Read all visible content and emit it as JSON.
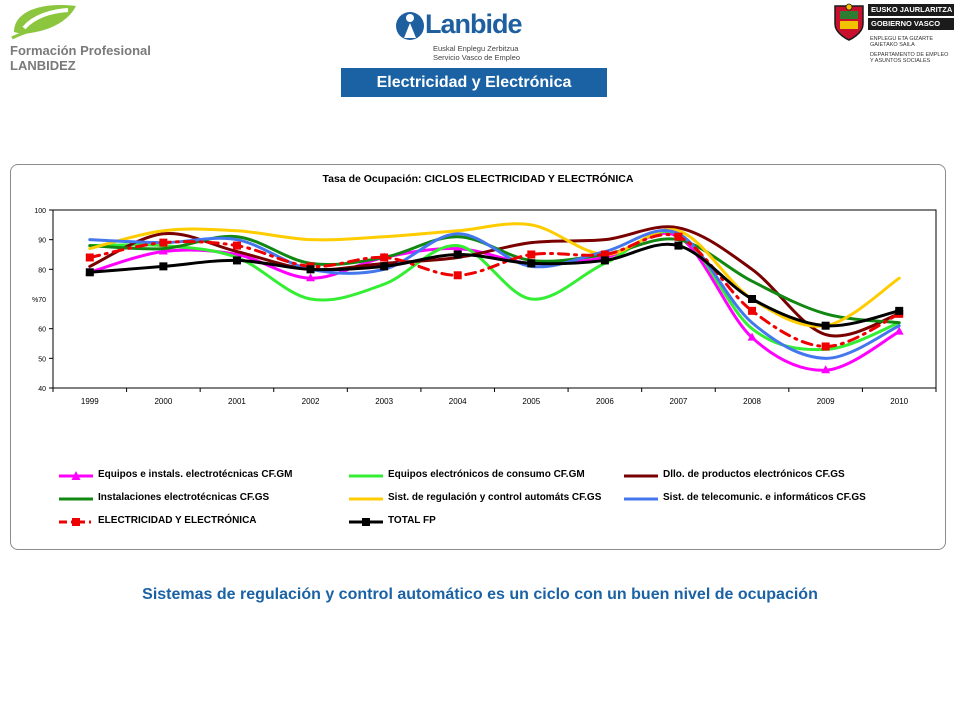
{
  "header": {
    "fp_logo": {
      "line1": "Formación Profesional",
      "line2": "LANBIDEZ"
    },
    "lanbide_logo": {
      "name": "Lanbide",
      "sub1": "Euskal Enplegu Zerbitzua",
      "sub2": "Servicio Vasco de Empleo"
    },
    "gv_logo": {
      "bar1": "EUSKO JAURLARITZA",
      "bar2": "GOBIERNO VASCO",
      "dept1": "ENPLEGU ETA GIZARTE",
      "dept2": "GAIETAKO SAILA",
      "dept3": "DEPARTAMENTO DE EMPLEO",
      "dept4": "Y ASUNTOS SOCIALES"
    },
    "banner": "Electricidad y Electrónica"
  },
  "footer_text": "Sistemas de regulación y control automático es un ciclo con un buen nivel de ocupación",
  "chart_data": {
    "type": "line",
    "title": "Tasa de Ocupación: CICLOS ELECTRICIDAD Y ELECTRÓNICA",
    "ylabel": "%70",
    "xlabel": "",
    "ylim": [
      40,
      100
    ],
    "yticks": [
      "40",
      "50",
      "60",
      "80",
      "90",
      "100"
    ],
    "ytick_values": [
      40,
      50,
      60,
      80,
      90,
      100
    ],
    "categories": [
      "1999",
      "2000",
      "2001",
      "2002",
      "2003",
      "2004",
      "2005",
      "2006",
      "2007",
      "2008",
      "2009",
      "2010"
    ],
    "legend_position": "bottom",
    "series": [
      {
        "name": "Equipos e instals. electrotécnicas CF.GM",
        "color": "#ff00ff",
        "marker": "triangle",
        "dash": "solid",
        "values": [
          79,
          86,
          85,
          77,
          84,
          87,
          82,
          84,
          91,
          57,
          46,
          59
        ]
      },
      {
        "name": "Equipos electrónicos de consumo CF.GM",
        "color": "#33ee33",
        "marker": "none",
        "dash": "solid",
        "values": [
          88,
          88,
          84,
          70,
          75,
          88,
          70,
          82,
          92,
          60,
          53,
          62
        ]
      },
      {
        "name": "Dllo. de productos electrónicos CF.GS",
        "color": "#7a0000",
        "marker": "none",
        "dash": "solid",
        "values": [
          81,
          92,
          86,
          80,
          82,
          84,
          89,
          90,
          94,
          80,
          58,
          65
        ]
      },
      {
        "name": "Instalaciones electrotécnicas CF.GS",
        "color": "#118811",
        "marker": "none",
        "dash": "solid",
        "values": [
          88,
          87,
          91,
          82,
          84,
          91,
          83,
          85,
          90,
          76,
          65,
          62
        ]
      },
      {
        "name": "Sist. de regulación y control automáts CF.GS",
        "color": "#ffcc00",
        "marker": "none",
        "dash": "solid",
        "values": [
          87,
          93,
          93,
          90,
          91,
          93,
          95,
          85,
          93,
          70,
          61,
          77
        ]
      },
      {
        "name": "Sist. de telecomunic. e informáticos CF.GS",
        "color": "#4477ee",
        "marker": "none",
        "dash": "solid",
        "values": [
          90,
          89,
          90,
          80,
          80,
          92,
          81,
          86,
          92,
          62,
          50,
          61
        ]
      },
      {
        "name": "ELECTRICIDAD Y ELECTRÓNICA",
        "color": "#ee0000",
        "marker": "square",
        "dash": "dashdot",
        "values": [
          84,
          89,
          88,
          81,
          84,
          78,
          85,
          85,
          91,
          66,
          54,
          65
        ]
      },
      {
        "name": "TOTAL FP",
        "color": "#000000",
        "marker": "square",
        "dash": "solid",
        "values": [
          79,
          81,
          83,
          80,
          81,
          85,
          82,
          83,
          88,
          70,
          61,
          66
        ]
      }
    ]
  }
}
